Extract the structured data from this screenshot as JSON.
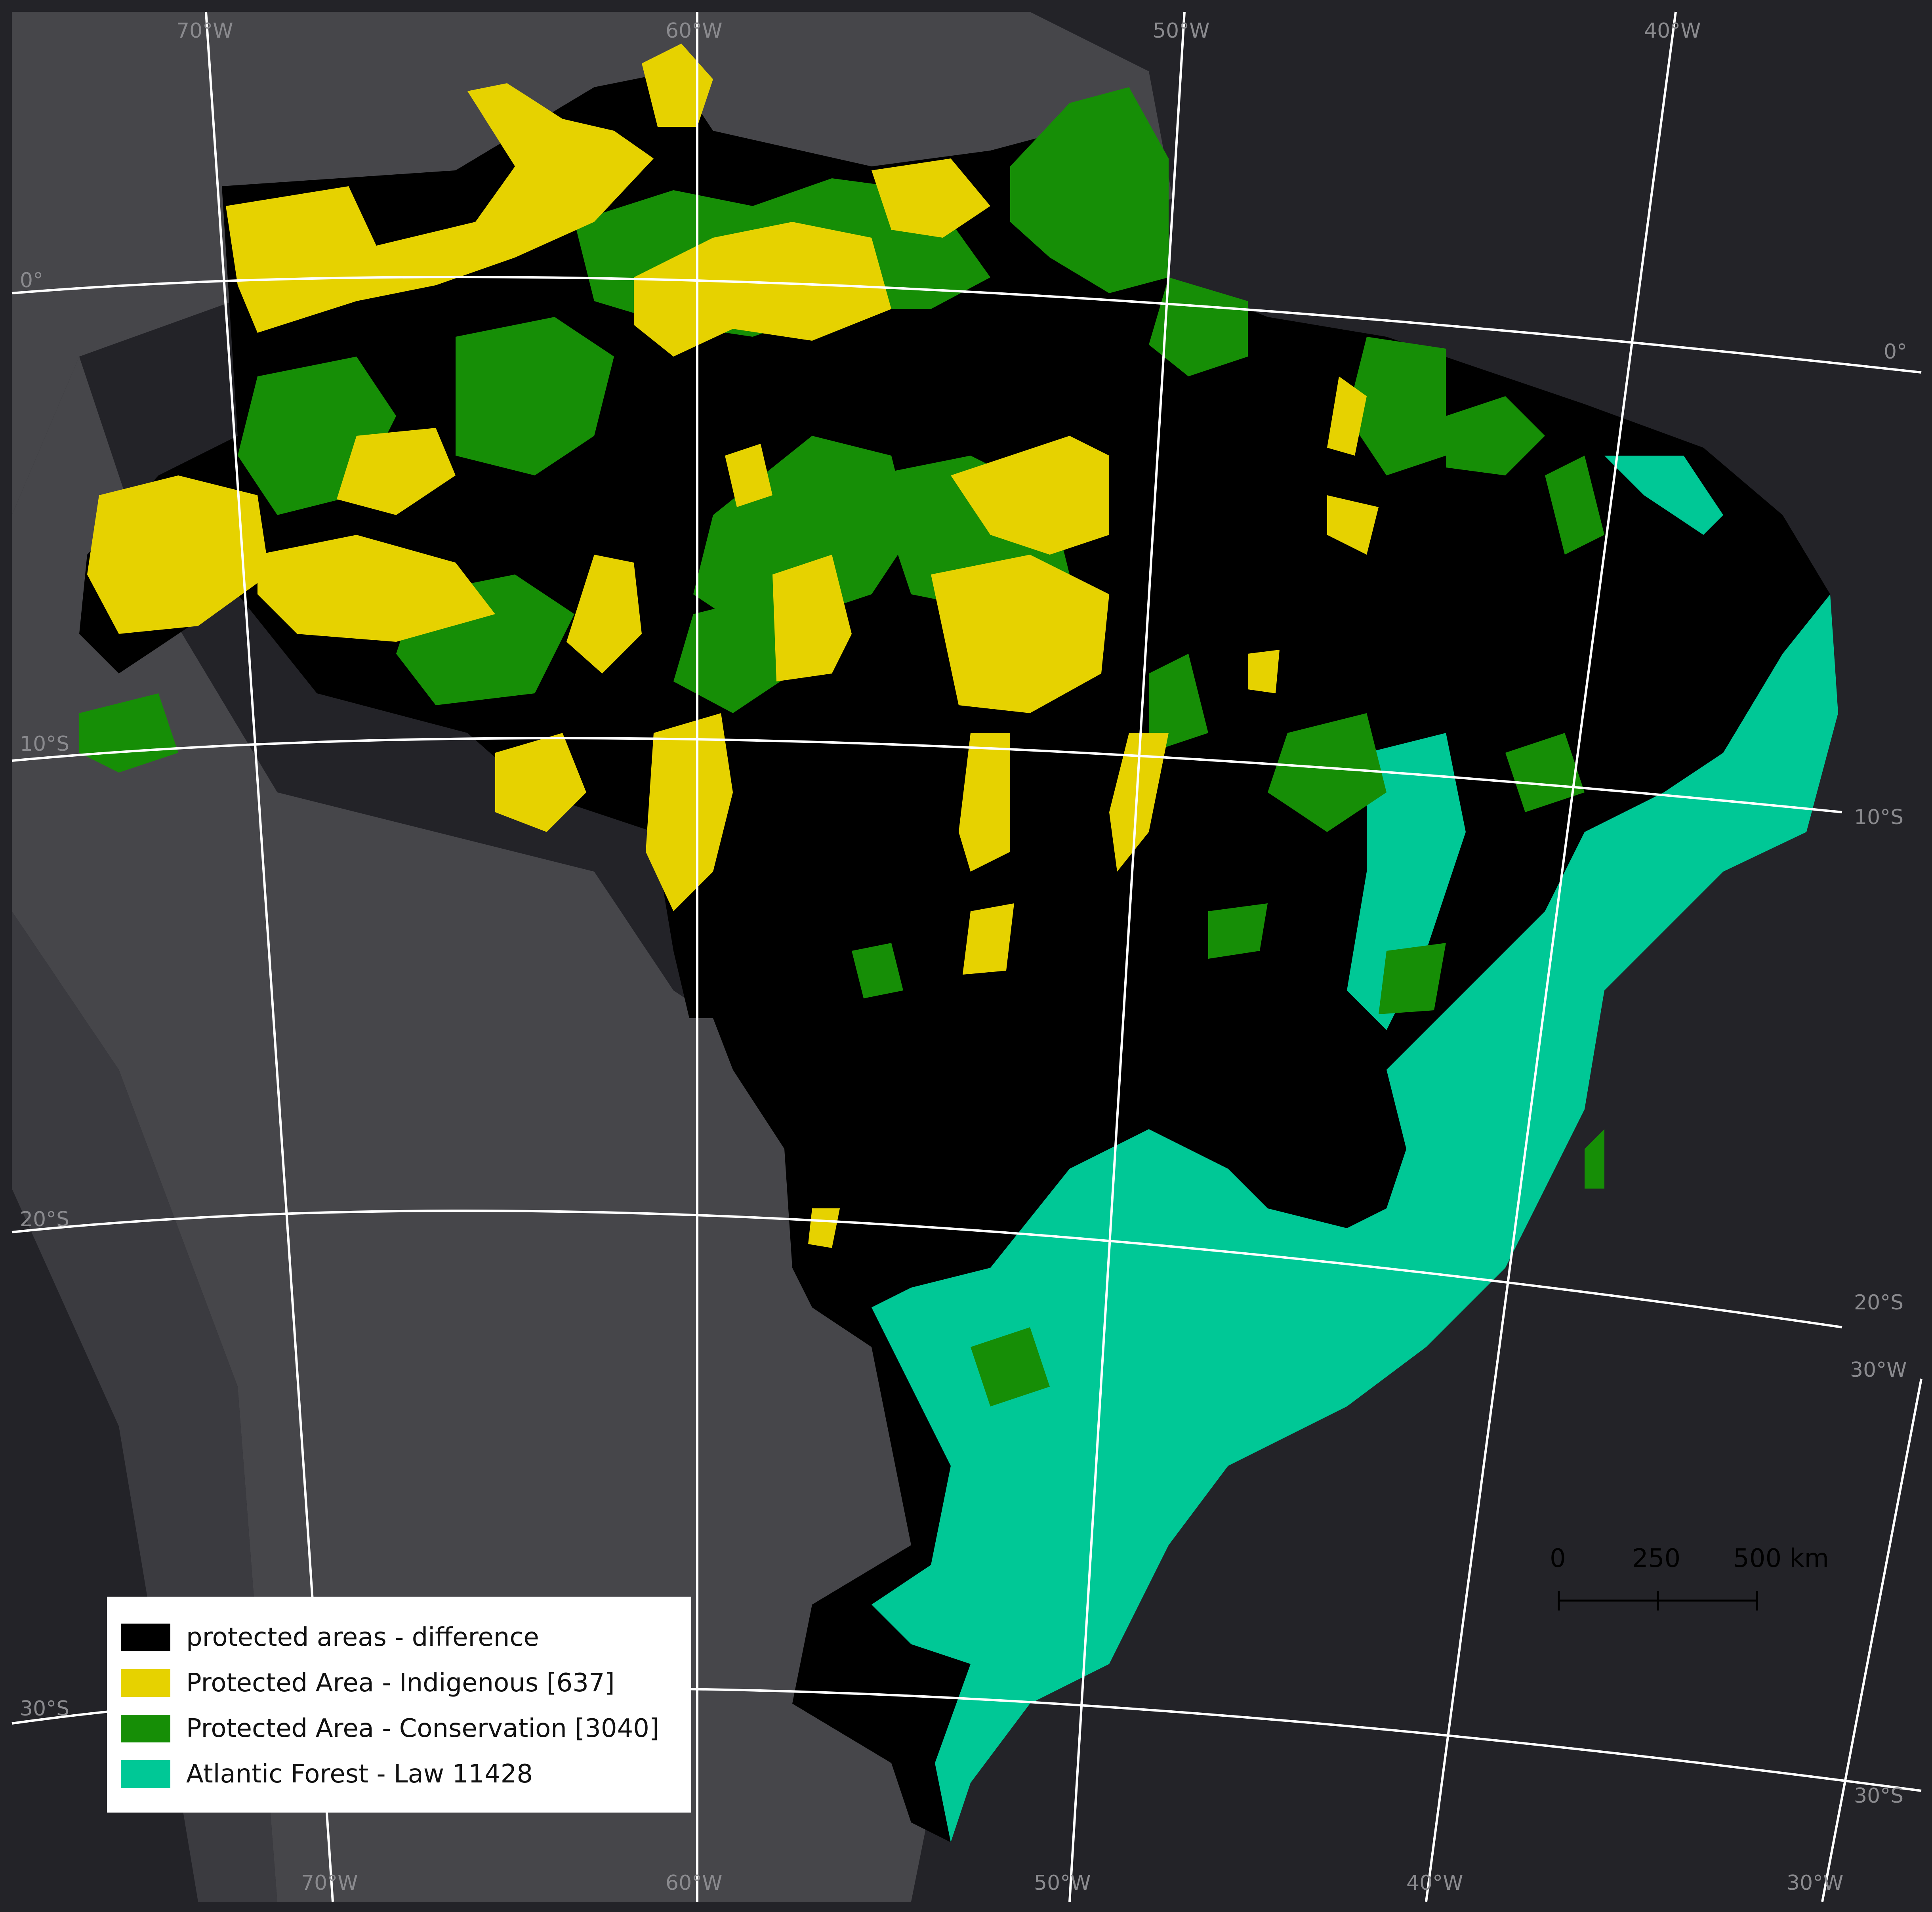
{
  "colors": {
    "ocean": "#232328",
    "land": "#46464a",
    "difference": "#000000",
    "indigenous": "#e6d200",
    "conservation": "#168e06",
    "atlantic_forest": "#00c896",
    "graticule": "#ffffff"
  },
  "graticule_labels": {
    "top": [
      "70°W",
      "60°W",
      "50°W",
      "40°W"
    ],
    "bottom": [
      "70°W",
      "60°W",
      "50°W",
      "40°W",
      "30°W"
    ],
    "left": [
      "0°",
      "10°S",
      "20°S",
      "30°S"
    ],
    "right": [
      "0°",
      "10°S",
      "20°S",
      "30°S"
    ],
    "right_extra": "30°W"
  },
  "scale_bar": {
    "ticks": [
      "0",
      "250",
      "500 km"
    ]
  },
  "legend": [
    {
      "label": "protected areas - difference",
      "color": "#000000"
    },
    {
      "label": "Protected Area - Indigenous [637]",
      "color": "#e6d200"
    },
    {
      "label": "Protected Area - Conservation [3040]",
      "color": "#168e06"
    },
    {
      "label": "Atlantic Forest - Law 11428",
      "color": "#00c896"
    }
  ]
}
